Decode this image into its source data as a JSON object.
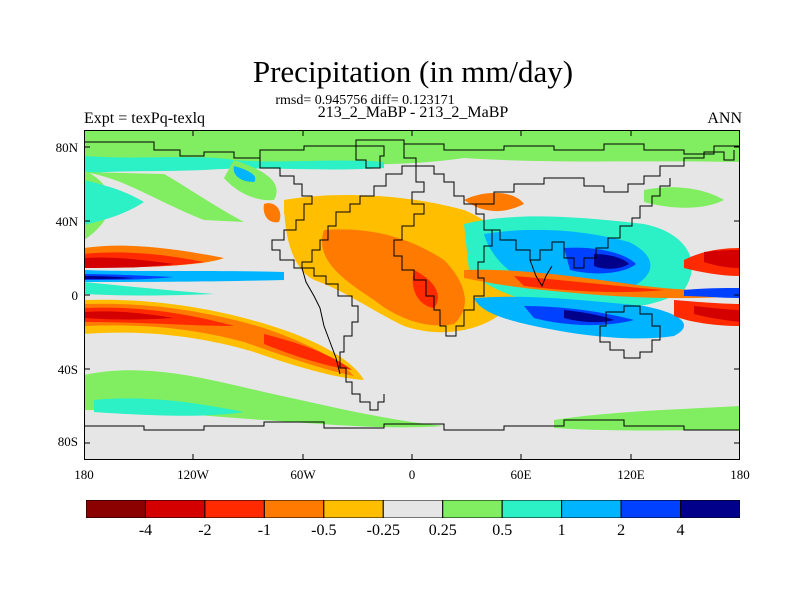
{
  "figure": {
    "title": "Precipitation (in mm/day)",
    "stats": "rmsd= 0.945756 diff= 0.123171",
    "subtitle": "213_2_MaBP - 213_2_MaBP",
    "left_label": "Expt = texPq-texlq",
    "right_label": "ANN"
  },
  "map": {
    "lat_labels": [
      "80N",
      "40N",
      "0",
      "40S",
      "80S"
    ],
    "lon_labels": [
      "180",
      "120W",
      "60W",
      "0",
      "60E",
      "120E",
      "180"
    ]
  },
  "colorbar": {
    "labels": [
      "-4",
      "-2",
      "-1",
      "-0.5",
      "-0.25",
      "0.25",
      "0.5",
      "1",
      "2",
      "4"
    ],
    "colors": [
      "#8b0000",
      "#d40000",
      "#ff2a00",
      "#ff7a00",
      "#ffbf00",
      "#e6e6e6",
      "#80ee60",
      "#2cf0c6",
      "#00b4ff",
      "#0040ff",
      "#00008b"
    ]
  }
}
